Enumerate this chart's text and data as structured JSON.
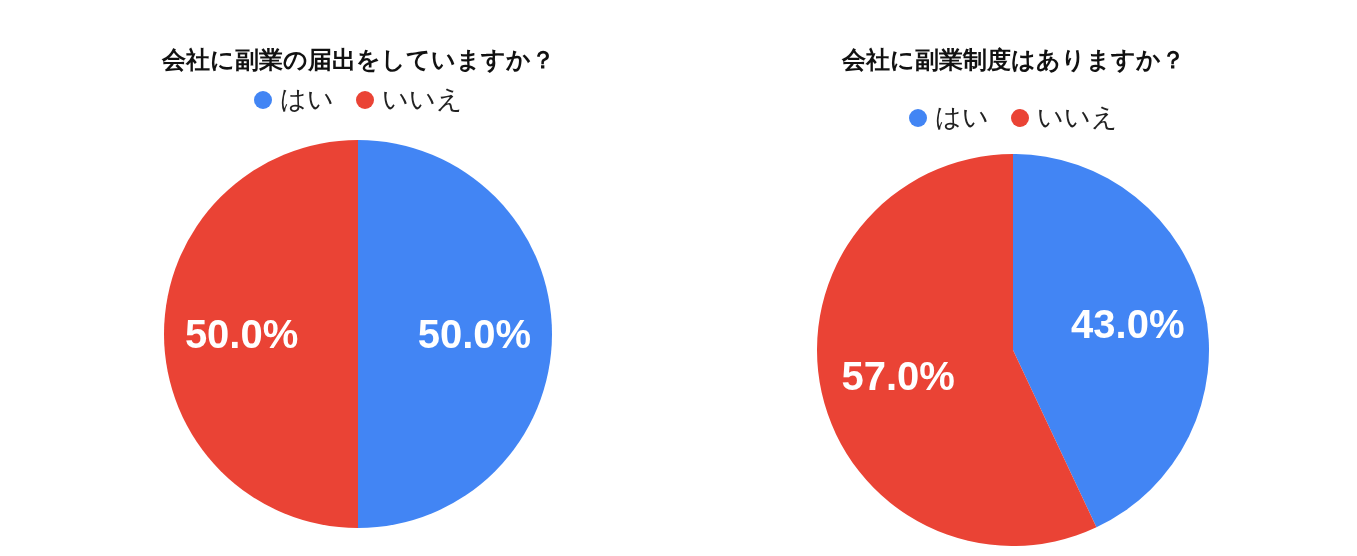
{
  "chart_data": [
    {
      "type": "pie",
      "title": "会社に副業の届出をしていますか？",
      "categories": [
        "はい",
        "いいえ"
      ],
      "values": [
        50,
        50
      ],
      "colors": [
        "#4285f4",
        "#ea4335"
      ],
      "value_labels": [
        "50.0%",
        "50.0%"
      ],
      "legend": "top"
    },
    {
      "type": "pie",
      "title": "会社に副業制度はありますか？",
      "categories": [
        "はい",
        "いいえ"
      ],
      "values": [
        43,
        57
      ],
      "colors": [
        "#4285f4",
        "#ea4335"
      ],
      "value_labels": [
        "43.0%",
        "57.0%"
      ],
      "legend": "top"
    }
  ]
}
